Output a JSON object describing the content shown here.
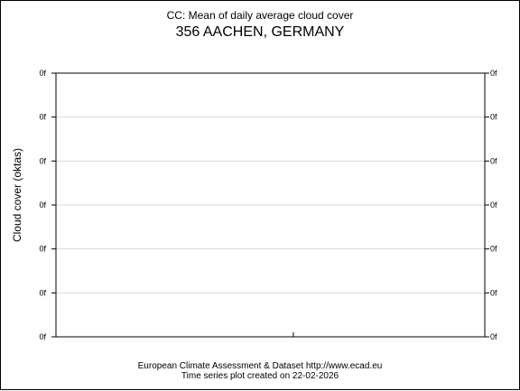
{
  "chart_data": {
    "type": "line",
    "title": "CC: Mean of daily average cloud cover",
    "subtitle": "356 AACHEN, GERMANY",
    "xlabel": "",
    "ylabel": "Cloud cover (oktas)",
    "y_tick_labels": [
      "0f",
      "0f",
      "0f",
      "0f",
      "0f",
      "0f",
      "0f"
    ],
    "x_tick_labels": [],
    "series": [],
    "grid": true,
    "legend": "none"
  },
  "footer": {
    "line1": "European Climate Assessment & Dataset  http://www.ecad.eu",
    "line2": "Time series plot created on 22-02-2026"
  }
}
